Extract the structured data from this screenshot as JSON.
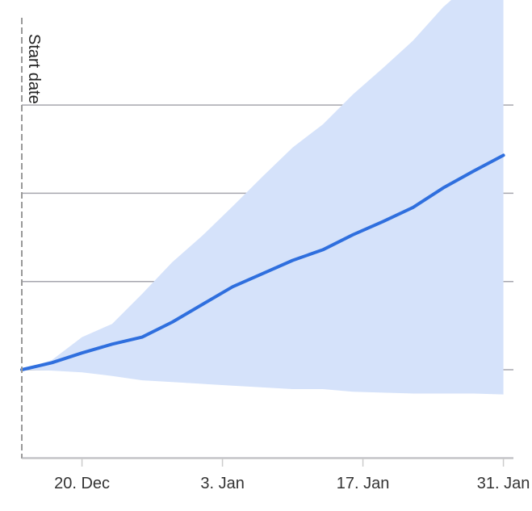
{
  "chart_data": {
    "type": "area",
    "title": "",
    "xlabel": "",
    "ylabel": "",
    "x_ticks": [
      "20. Dec",
      "3. Jan",
      "17. Jan",
      "31. Jan"
    ],
    "x_range": [
      "2023-12-14",
      "2024-02-01"
    ],
    "y_range": [
      -1,
      4
    ],
    "grid": true,
    "plot_line": {
      "label": "Start date",
      "x": "2023-12-14"
    },
    "series": [
      {
        "type": "line",
        "x": [
          "2023-12-14",
          "2023-12-17",
          "2023-12-20",
          "2023-12-23",
          "2023-12-26",
          "2023-12-29",
          "2024-01-01",
          "2024-01-04",
          "2024-01-07",
          "2024-01-10",
          "2024-01-13",
          "2024-01-16",
          "2024-01-19",
          "2024-01-22",
          "2024-01-25",
          "2024-01-28",
          "2024-01-31"
        ],
        "values": [
          0.0,
          0.08,
          0.19,
          0.29,
          0.37,
          0.54,
          0.74,
          0.94,
          1.09,
          1.24,
          1.36,
          1.53,
          1.68,
          1.84,
          2.06,
          2.25,
          2.43
        ]
      },
      {
        "type": "range",
        "x": [
          "2023-12-14",
          "2023-12-17",
          "2023-12-20",
          "2023-12-23",
          "2023-12-26",
          "2023-12-29",
          "2024-01-01",
          "2024-01-04",
          "2024-01-07",
          "2024-01-10",
          "2024-01-13",
          "2024-01-16",
          "2024-01-19",
          "2024-01-22",
          "2024-01-25",
          "2024-01-28",
          "2024-01-31"
        ],
        "low": [
          0.0,
          -0.01,
          -0.03,
          -0.07,
          -0.12,
          -0.14,
          -0.16,
          -0.18,
          -0.2,
          -0.22,
          -0.22,
          -0.25,
          -0.26,
          -0.27,
          -0.27,
          -0.27,
          -0.28
        ],
        "high": [
          0.0,
          0.11,
          0.37,
          0.52,
          0.86,
          1.22,
          1.52,
          1.85,
          2.19,
          2.52,
          2.78,
          3.12,
          3.42,
          3.73,
          4.11,
          4.41,
          4.68
        ]
      }
    ],
    "colors": {
      "line": "#2f6fde",
      "range": "#d5e2fa",
      "grid": "#a6a6ae",
      "plot_line": "#999999"
    }
  }
}
